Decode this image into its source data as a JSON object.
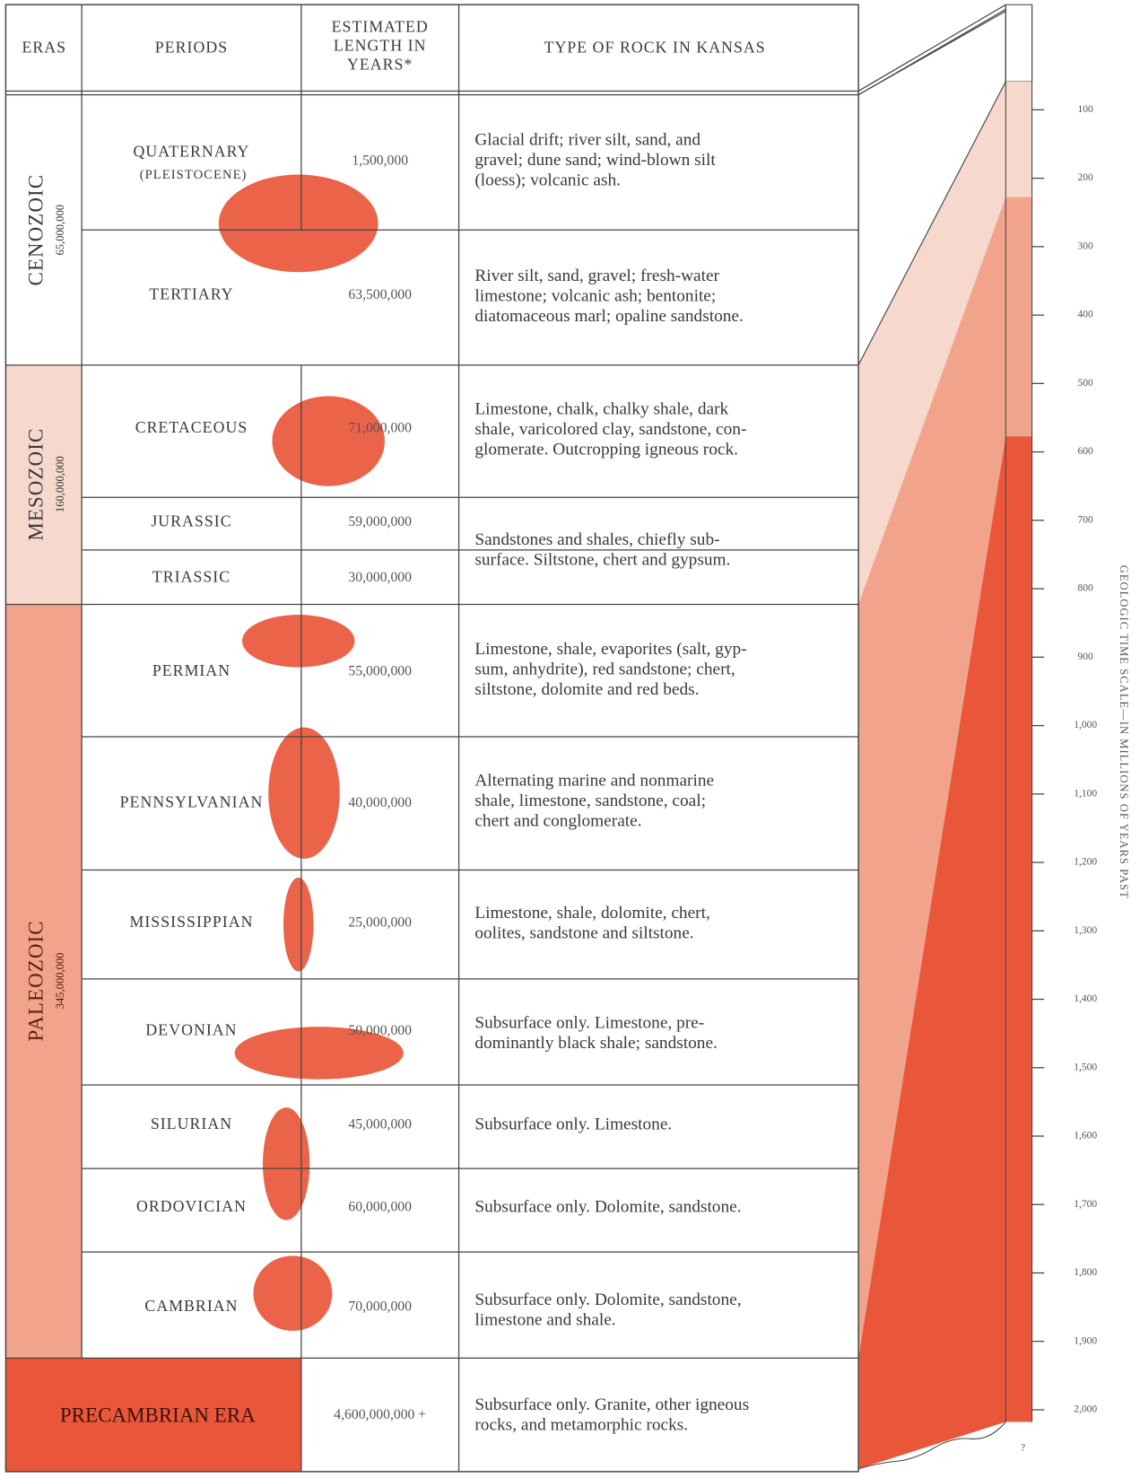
{
  "header": {
    "eras": "ERAS",
    "periods": "PERIODS",
    "length": [
      "ESTIMATED",
      "LENGTH IN",
      "YEARS*"
    ],
    "rock": "TYPE OF ROCK IN KANSAS"
  },
  "eras": [
    {
      "name": "CENOZOIC",
      "length": "65,000,000"
    },
    {
      "name": "MESOZOIC",
      "length": "160,000,000"
    },
    {
      "name": "PALEOZOIC",
      "length": "345,000,000"
    },
    {
      "name": "PRECAMBRIAN ERA",
      "length": "4,600,000,000 +"
    }
  ],
  "periods": [
    {
      "name": "QUATERNARY",
      "note": "(PLEISTOCENE)",
      "length": "1,500,000"
    },
    {
      "name": "TERTIARY",
      "length": "63,500,000"
    },
    {
      "name": "CRETACEOUS",
      "length": "71,000,000"
    },
    {
      "name": "JURASSIC",
      "length": "59,000,000"
    },
    {
      "name": "TRIASSIC",
      "length": "30,000,000"
    },
    {
      "name": "PERMIAN",
      "length": "55,000,000"
    },
    {
      "name": "PENNSYLVANIAN",
      "length": "40,000,000"
    },
    {
      "name": "MISSISSIPPIAN",
      "length": "25,000,000"
    },
    {
      "name": "DEVONIAN",
      "length": "50,000,000"
    },
    {
      "name": "SILURIAN",
      "length": "45,000,000"
    },
    {
      "name": "ORDOVICIAN",
      "length": "60,000,000"
    },
    {
      "name": "CAMBRIAN",
      "length": "70,000,000"
    }
  ],
  "rocks": [
    {
      "lines": [
        "Glacial drift; river silt, sand, and",
        "gravel; dune sand; wind-blown silt",
        "(loess); volcanic ash."
      ]
    },
    {
      "lines": [
        "River silt, sand, gravel; fresh-water",
        "limestone; volcanic ash; bentonite;",
        "diatomaceous marl; opaline sandstone."
      ]
    },
    {
      "lines": [
        "Limestone, chalk, chalky shale, dark",
        "shale, varicolored clay, sandstone, con-",
        "glomerate. Outcropping igneous rock."
      ]
    },
    {
      "lines": [
        "Sandstones and shales, chiefly sub-",
        "surface. Siltstone, chert and gypsum."
      ]
    },
    {
      "lines": [
        "Limestone, shale, evaporites (salt, gyp-",
        "sum, anhydrite), red sandstone; chert,",
        "siltstone, dolomite and red beds."
      ]
    },
    {
      "lines": [
        "Alternating marine and nonmarine",
        "shale, limestone, sandstone, coal;",
        "chert and conglomerate."
      ]
    },
    {
      "lines": [
        "Limestone, shale, dolomite, chert,",
        "oolites, sandstone and siltstone."
      ]
    },
    {
      "lines": [
        "Subsurface only. Limestone, pre-",
        "dominantly black shale; sandstone."
      ]
    },
    {
      "lines": [
        "Subsurface only. Limestone."
      ]
    },
    {
      "lines": [
        "Subsurface only. Dolomite, sandstone."
      ]
    },
    {
      "lines": [
        "Subsurface only. Dolomite, sandstone,",
        "limestone and shale."
      ]
    },
    {
      "lines": [
        "Subsurface only. Granite, other igneous",
        "rocks, and metamorphic rocks."
      ]
    }
  ],
  "scale": {
    "label": "GEOLOGIC TIME SCALE—IN MILLIONS OF YEARS PAST",
    "ticks": [
      "100",
      "200",
      "300",
      "400",
      "500",
      "600",
      "700",
      "800",
      "900",
      "1,000",
      "1,100",
      "1,200",
      "1,300",
      "1,400",
      "1,500",
      "1,600",
      "1,700",
      "1,800",
      "1,900",
      "2,000"
    ],
    "unknown": "?"
  }
}
